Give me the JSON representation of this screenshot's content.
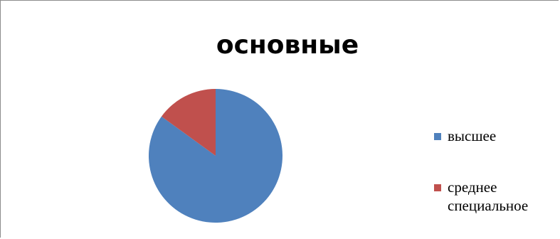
{
  "chart_data": {
    "type": "pie",
    "title": "основные",
    "slices": [
      {
        "label": "высшее",
        "value": 85,
        "color": "#4f81bd"
      },
      {
        "label": "среднее\nспециальное",
        "value": 15,
        "color": "#c0504d"
      }
    ],
    "legend_position": "right"
  }
}
